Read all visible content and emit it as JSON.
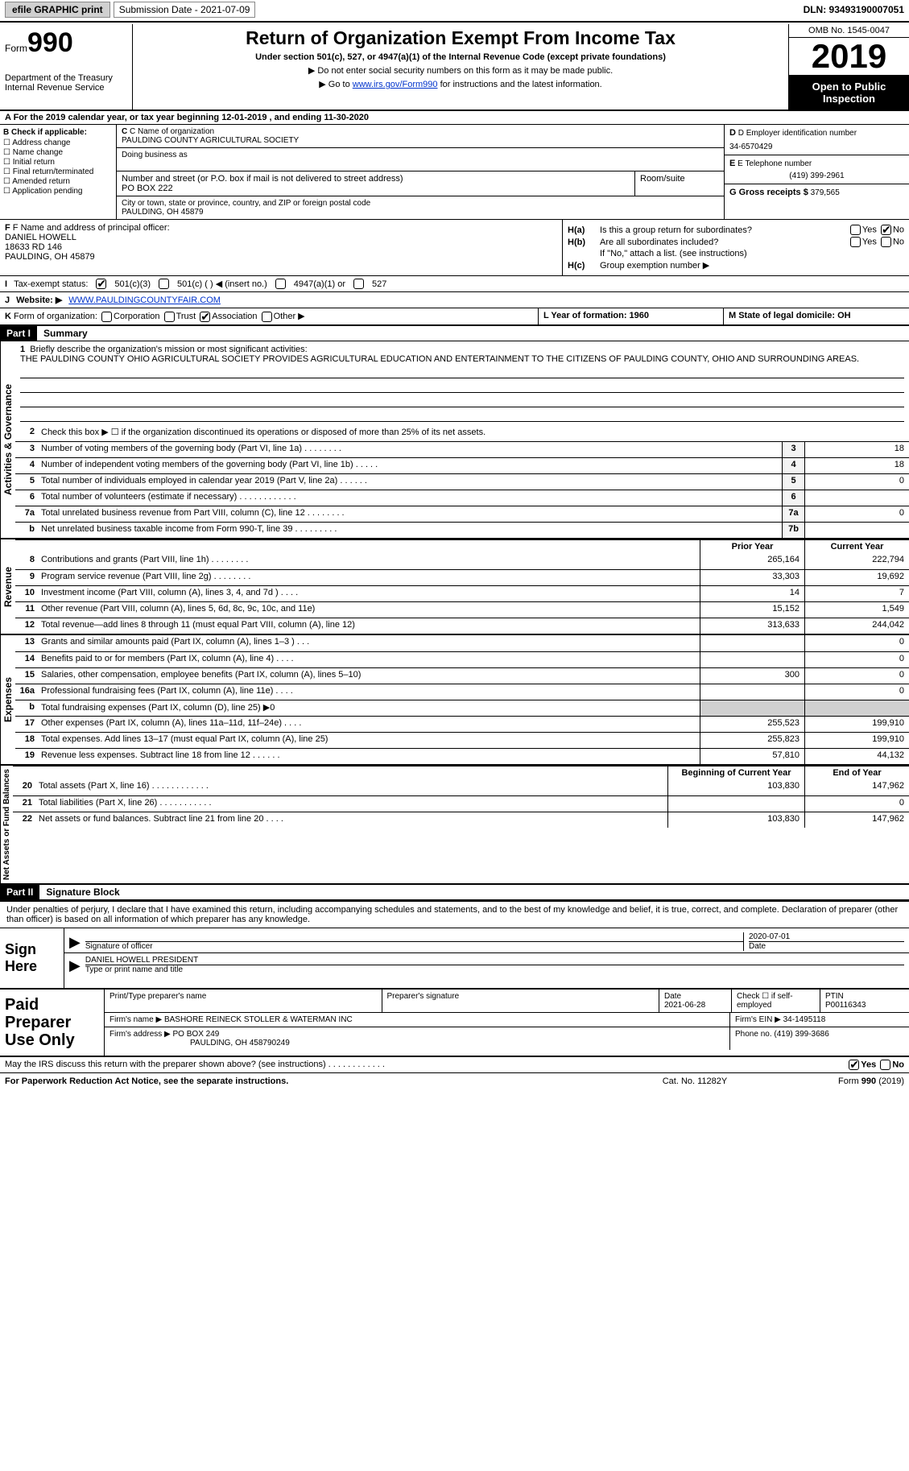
{
  "topbar": {
    "efile": "efile GRAPHIC print",
    "sub_label": "Submission Date - 2021-07-09",
    "dln": "DLN: 93493190007051"
  },
  "header": {
    "form_prefix": "Form",
    "form_num": "990",
    "dept": "Department of the Treasury\nInternal Revenue Service",
    "title": "Return of Organization Exempt From Income Tax",
    "subtitle": "Under section 501(c), 527, or 4947(a)(1) of the Internal Revenue Code (except private foundations)",
    "note1": "▶ Do not enter social security numbers on this form as it may be made public.",
    "note2_pre": "▶ Go to ",
    "note2_link": "www.irs.gov/Form990",
    "note2_post": " for instructions and the latest information.",
    "omb": "OMB No. 1545-0047",
    "year": "2019",
    "open": "Open to Public Inspection"
  },
  "line_a": "A For the 2019 calendar year, or tax year beginning 12-01-2019   , and ending 11-30-2020",
  "sec_b": {
    "title": "B Check if applicable:",
    "opts": [
      "Address change",
      "Name change",
      "Initial return",
      "Final return/terminated",
      "Amended return",
      "Application pending"
    ]
  },
  "sec_c": {
    "name_lbl": "C Name of organization",
    "name": "PAULDING COUNTY AGRICULTURAL SOCIETY",
    "dba_lbl": "Doing business as",
    "addr_lbl": "Number and street (or P.O. box if mail is not delivered to street address)",
    "room_lbl": "Room/suite",
    "addr": "PO BOX 222",
    "city_lbl": "City or town, state or province, country, and ZIP or foreign postal code",
    "city": "PAULDING, OH  45879"
  },
  "sec_d": {
    "ein_lbl": "D Employer identification number",
    "ein": "34-6570429",
    "tel_lbl": "E Telephone number",
    "tel": "(419) 399-2961",
    "gross_lbl": "G Gross receipts $",
    "gross": "379,565"
  },
  "sec_f": {
    "lbl": "F Name and address of principal officer:",
    "name": "DANIEL HOWELL",
    "l1": "18633 RD 146",
    "l2": "PAULDING, OH  45879"
  },
  "sec_h": {
    "a_lbl": "H(a)",
    "a_txt": "Is this a group return for subordinates?",
    "b_lbl": "H(b)",
    "b_txt": "Are all subordinates included?",
    "b_note": "If \"No,\" attach a list. (see instructions)",
    "c_lbl": "H(c)",
    "c_txt": "Group exemption number ▶"
  },
  "row_i": {
    "lbl": "I",
    "txt": "Tax-exempt status:",
    "o1": "501(c)(3)",
    "o2": "501(c) (  ) ◀ (insert no.)",
    "o3": "4947(a)(1) or",
    "o4": "527"
  },
  "row_j": {
    "lbl": "J",
    "txt": "Website: ▶",
    "url": "WWW.PAULDINGCOUNTYFAIR.COM"
  },
  "row_k": {
    "lbl": "K",
    "txt": "Form of organization:",
    "o1": "Corporation",
    "o2": "Trust",
    "o3": "Association",
    "o4": "Other ▶"
  },
  "row_l": "L Year of formation: 1960",
  "row_m": "M State of legal domicile: OH",
  "part1": {
    "hdr": "Part I",
    "title": "Summary"
  },
  "mission": {
    "num": "1",
    "lbl": "Briefly describe the organization's mission or most significant activities:",
    "txt": "THE PAULDING COUNTY OHIO AGRICULTURAL SOCIETY PROVIDES AGRICULTURAL EDUCATION AND ENTERTAINMENT TO THE CITIZENS OF PAULDING COUNTY, OHIO AND SURROUNDING AREAS."
  },
  "gov_lines": [
    {
      "n": "2",
      "d": "Check this box ▶ ☐  if the organization discontinued its operations or disposed of more than 25% of its net assets.",
      "box": "",
      "v": ""
    },
    {
      "n": "3",
      "d": "Number of voting members of the governing body (Part VI, line 1a)   .    .    .    .    .    .    .    .",
      "box": "3",
      "v": "18"
    },
    {
      "n": "4",
      "d": "Number of independent voting members of the governing body (Part VI, line 1b)    .    .    .    .    .",
      "box": "4",
      "v": "18"
    },
    {
      "n": "5",
      "d": "Total number of individuals employed in calendar year 2019 (Part V, line 2a)    .    .    .    .    .    .",
      "box": "5",
      "v": "0"
    },
    {
      "n": "6",
      "d": "Total number of volunteers (estimate if necessary)    .    .    .    .    .    .    .    .    .    .    .    .",
      "box": "6",
      "v": ""
    },
    {
      "n": "7a",
      "d": "Total unrelated business revenue from Part VIII, column (C), line 12    .    .    .    .    .    .    .    .",
      "box": "7a",
      "v": "0"
    },
    {
      "n": "b",
      "d": "Net unrelated business taxable income from Form 990-T, line 39    .    .    .    .    .    .    .    .    .",
      "box": "7b",
      "v": ""
    }
  ],
  "col_hdr": {
    "c1": "Prior Year",
    "c2": "Current Year"
  },
  "rev_lines": [
    {
      "n": "8",
      "d": "Contributions and grants (Part VIII, line 1h)    .    .    .    .    .    .    .    .",
      "v1": "265,164",
      "v2": "222,794"
    },
    {
      "n": "9",
      "d": "Program service revenue (Part VIII, line 2g)    .    .    .    .    .    .    .    .",
      "v1": "33,303",
      "v2": "19,692"
    },
    {
      "n": "10",
      "d": "Investment income (Part VIII, column (A), lines 3, 4, and 7d )    .    .    .    .",
      "v1": "14",
      "v2": "7"
    },
    {
      "n": "11",
      "d": "Other revenue (Part VIII, column (A), lines 5, 6d, 8c, 9c, 10c, and 11e)",
      "v1": "15,152",
      "v2": "1,549"
    },
    {
      "n": "12",
      "d": "Total revenue—add lines 8 through 11 (must equal Part VIII, column (A), line 12)",
      "v1": "313,633",
      "v2": "244,042"
    }
  ],
  "exp_lines": [
    {
      "n": "13",
      "d": "Grants and similar amounts paid (Part IX, column (A), lines 1–3 )    .    .    .",
      "v1": "",
      "v2": "0"
    },
    {
      "n": "14",
      "d": "Benefits paid to or for members (Part IX, column (A), line 4)    .    .    .    .",
      "v1": "",
      "v2": "0"
    },
    {
      "n": "15",
      "d": "Salaries, other compensation, employee benefits (Part IX, column (A), lines 5–10)",
      "v1": "300",
      "v2": "0"
    },
    {
      "n": "16a",
      "d": "Professional fundraising fees (Part IX, column (A), line 11e)    .    .    .    .",
      "v1": "",
      "v2": "0"
    },
    {
      "n": "b",
      "d": "Total fundraising expenses (Part IX, column (D), line 25) ▶0",
      "v1": "shade",
      "v2": "shade"
    },
    {
      "n": "17",
      "d": "Other expenses (Part IX, column (A), lines 11a–11d, 11f–24e)    .    .    .    .",
      "v1": "255,523",
      "v2": "199,910"
    },
    {
      "n": "18",
      "d": "Total expenses. Add lines 13–17 (must equal Part IX, column (A), line 25)",
      "v1": "255,823",
      "v2": "199,910"
    },
    {
      "n": "19",
      "d": "Revenue less expenses. Subtract line 18 from line 12    .    .    .    .    .    .",
      "v1": "57,810",
      "v2": "44,132"
    }
  ],
  "net_hdr": {
    "c1": "Beginning of Current Year",
    "c2": "End of Year"
  },
  "net_lines": [
    {
      "n": "20",
      "d": "Total assets (Part X, line 16)    .    .    .    .    .    .    .    .    .    .    .    .",
      "v1": "103,830",
      "v2": "147,962"
    },
    {
      "n": "21",
      "d": "Total liabilities (Part X, line 26)    .    .    .    .    .    .    .    .    .    .    .",
      "v1": "",
      "v2": "0"
    },
    {
      "n": "22",
      "d": "Net assets or fund balances. Subtract line 21 from line 20    .    .    .    .",
      "v1": "103,830",
      "v2": "147,962"
    }
  ],
  "vlabels": {
    "gov": "Activities & Governance",
    "rev": "Revenue",
    "exp": "Expenses",
    "net": "Net Assets or Fund Balances"
  },
  "part2": {
    "hdr": "Part II",
    "title": "Signature Block"
  },
  "sig_text": "Under penalties of perjury, I declare that I have examined this return, including accompanying schedules and statements, and to the best of my knowledge and belief, it is true, correct, and complete. Declaration of preparer (other than officer) is based on all information of which preparer has any knowledge.",
  "sign": {
    "here": "Sign Here",
    "sig_lbl": "Signature of officer",
    "date": "2020-07-01",
    "date_lbl": "Date",
    "name": "DANIEL HOWELL PRESIDENT",
    "name_lbl": "Type or print name and title"
  },
  "prep": {
    "left": "Paid Preparer Use Only",
    "h1": "Print/Type preparer's name",
    "h2": "Preparer's signature",
    "h3": "Date",
    "h3v": "2021-06-28",
    "h4": "Check ☐ if self-employed",
    "h5": "PTIN",
    "h5v": "P00116343",
    "firm_lbl": "Firm's name    ▶",
    "firm": "BASHORE REINECK STOLLER & WATERMAN INC",
    "ein_lbl": "Firm's EIN ▶",
    "ein": "34-1495118",
    "addr_lbl": "Firm's address ▶",
    "addr": "PO BOX 249",
    "addr2": "PAULDING, OH  458790249",
    "ph_lbl": "Phone no.",
    "ph": "(419) 399-3686"
  },
  "discuss": "May the IRS discuss this return with the preparer shown above? (see instructions)    .    .    .    .    .    .    .    .    .    .    .    .",
  "footer": {
    "l": "For Paperwork Reduction Act Notice, see the separate instructions.",
    "m": "Cat. No. 11282Y",
    "r": "Form 990 (2019)"
  }
}
